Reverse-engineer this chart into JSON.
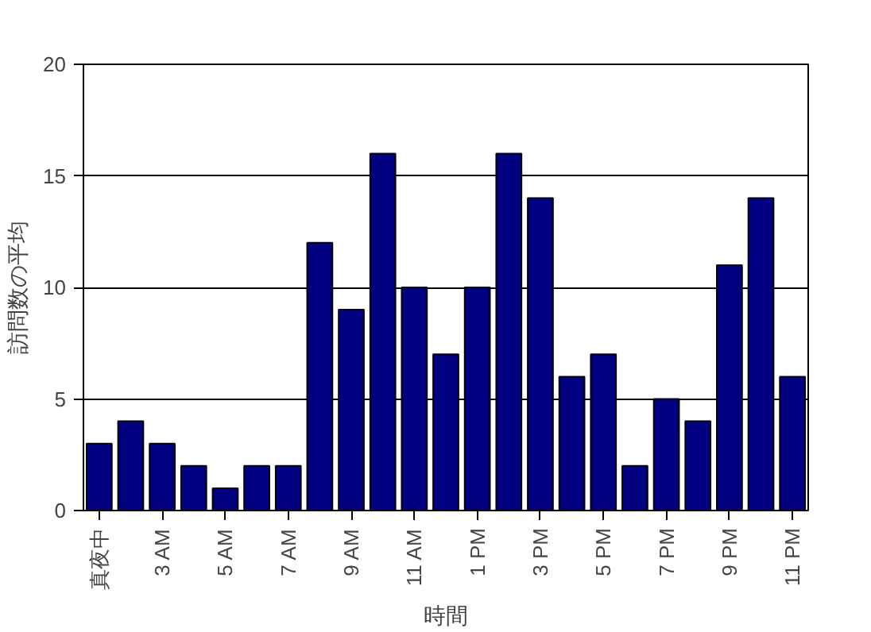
{
  "chart_data": {
    "type": "bar",
    "xlabel": "時間",
    "ylabel": "訪問数の平均",
    "categories": [
      "真夜中",
      null,
      "3 AM",
      null,
      "5 AM",
      null,
      "7 AM",
      null,
      "9 AM",
      null,
      "11 AM",
      null,
      "1 PM",
      null,
      "3 PM",
      null,
      "5 PM",
      null,
      "7 PM",
      null,
      "9 PM",
      null,
      "11 PM"
    ],
    "values": [
      3,
      4,
      3,
      2,
      1,
      2,
      2,
      12,
      9,
      16,
      10,
      7,
      10,
      16,
      14,
      6,
      7,
      2,
      5,
      4,
      11,
      14,
      6
    ],
    "color": "#000080",
    "ylim": [
      0,
      20
    ],
    "yticks": [
      0,
      5,
      10,
      15,
      20
    ],
    "grid": "y"
  }
}
